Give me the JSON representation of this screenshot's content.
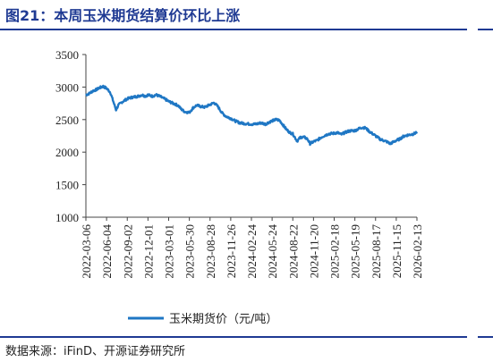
{
  "header": {
    "title": "图21：本周玉米期货结算价环比上涨"
  },
  "footer": {
    "source": "数据来源：iFinD、开源证券研究所"
  },
  "chart_data": {
    "type": "line",
    "title": "图21：本周玉米期货结算价环比上涨",
    "xlabel": "",
    "ylabel": "",
    "ylim": [
      1000,
      3500
    ],
    "yticks": [
      1000,
      1500,
      2000,
      2500,
      3000,
      3500
    ],
    "xlim": [
      "2022-03-06",
      "2026-02-13"
    ],
    "xticks": [
      "2022-03-06",
      "2022-06-04",
      "2022-09-02",
      "2022-12-01",
      "2023-03-01",
      "2023-05-30",
      "2023-08-28",
      "2023-11-26",
      "2024-02-24",
      "2024-05-24",
      "2024-08-22",
      "2024-11-20",
      "2025-02-18",
      "2025-05-19",
      "2025-08-17",
      "2025-11-15",
      "2026-02-13"
    ],
    "grid": false,
    "legend": "bottom",
    "color": "#1f77c4",
    "series": [
      {
        "name": "玉米期货价（元/吨）",
        "points": [
          [
            "2022-03-06",
            2880
          ],
          [
            "2022-03-20",
            2900
          ],
          [
            "2022-04-05",
            2940
          ],
          [
            "2022-04-20",
            2960
          ],
          [
            "2022-05-05",
            2990
          ],
          [
            "2022-05-20",
            3010
          ],
          [
            "2022-06-04",
            2980
          ],
          [
            "2022-06-20",
            2920
          ],
          [
            "2022-07-05",
            2760
          ],
          [
            "2022-07-15",
            2650
          ],
          [
            "2022-07-25",
            2720
          ],
          [
            "2022-08-10",
            2770
          ],
          [
            "2022-09-02",
            2820
          ],
          [
            "2022-09-20",
            2840
          ],
          [
            "2022-10-05",
            2850
          ],
          [
            "2022-10-20",
            2860
          ],
          [
            "2022-11-05",
            2880
          ],
          [
            "2022-11-20",
            2860
          ],
          [
            "2022-12-01",
            2880
          ],
          [
            "2022-12-20",
            2860
          ],
          [
            "2023-01-05",
            2880
          ],
          [
            "2023-01-20",
            2860
          ],
          [
            "2023-02-05",
            2830
          ],
          [
            "2023-02-20",
            2800
          ],
          [
            "2023-03-01",
            2780
          ],
          [
            "2023-03-20",
            2750
          ],
          [
            "2023-04-10",
            2720
          ],
          [
            "2023-04-25",
            2660
          ],
          [
            "2023-05-10",
            2620
          ],
          [
            "2023-05-30",
            2610
          ],
          [
            "2023-06-15",
            2680
          ],
          [
            "2023-07-01",
            2720
          ],
          [
            "2023-07-20",
            2700
          ],
          [
            "2023-08-05",
            2690
          ],
          [
            "2023-08-28",
            2730
          ],
          [
            "2023-09-15",
            2760
          ],
          [
            "2023-10-01",
            2700
          ],
          [
            "2023-10-20",
            2600
          ],
          [
            "2023-11-05",
            2550
          ],
          [
            "2023-11-26",
            2520
          ],
          [
            "2023-12-15",
            2480
          ],
          [
            "2024-01-05",
            2450
          ],
          [
            "2024-01-25",
            2440
          ],
          [
            "2024-02-24",
            2430
          ],
          [
            "2024-03-15",
            2430
          ],
          [
            "2024-04-05",
            2450
          ],
          [
            "2024-04-25",
            2430
          ],
          [
            "2024-05-10",
            2460
          ],
          [
            "2024-05-24",
            2480
          ],
          [
            "2024-06-10",
            2500
          ],
          [
            "2024-06-25",
            2490
          ],
          [
            "2024-07-10",
            2420
          ],
          [
            "2024-07-25",
            2350
          ],
          [
            "2024-08-10",
            2300
          ],
          [
            "2024-08-22",
            2280
          ],
          [
            "2024-09-10",
            2170
          ],
          [
            "2024-09-25",
            2230
          ],
          [
            "2024-10-10",
            2230
          ],
          [
            "2024-10-25",
            2200
          ],
          [
            "2024-11-05",
            2130
          ],
          [
            "2024-11-20",
            2160
          ],
          [
            "2024-12-05",
            2180
          ],
          [
            "2024-12-25",
            2230
          ],
          [
            "2025-01-10",
            2260
          ],
          [
            "2025-01-25",
            2280
          ],
          [
            "2025-02-18",
            2290
          ],
          [
            "2025-03-05",
            2300
          ],
          [
            "2025-03-20",
            2270
          ],
          [
            "2025-04-05",
            2300
          ],
          [
            "2025-04-20",
            2320
          ],
          [
            "2025-05-05",
            2330
          ],
          [
            "2025-05-19",
            2330
          ],
          [
            "2025-06-05",
            2360
          ],
          [
            "2025-06-20",
            2380
          ],
          [
            "2025-07-05",
            2370
          ],
          [
            "2025-07-20",
            2320
          ],
          [
            "2025-08-05",
            2280
          ],
          [
            "2025-08-17",
            2250
          ],
          [
            "2025-09-05",
            2200
          ],
          [
            "2025-09-20",
            2180
          ],
          [
            "2025-10-05",
            2160
          ],
          [
            "2025-10-20",
            2130
          ],
          [
            "2025-11-05",
            2160
          ],
          [
            "2025-11-15",
            2180
          ],
          [
            "2025-11-30",
            2200
          ],
          [
            "2025-12-15",
            2240
          ],
          [
            "2026-01-01",
            2260
          ],
          [
            "2026-01-15",
            2270
          ],
          [
            "2026-01-30",
            2280
          ],
          [
            "2026-02-13",
            2310
          ]
        ]
      }
    ]
  }
}
